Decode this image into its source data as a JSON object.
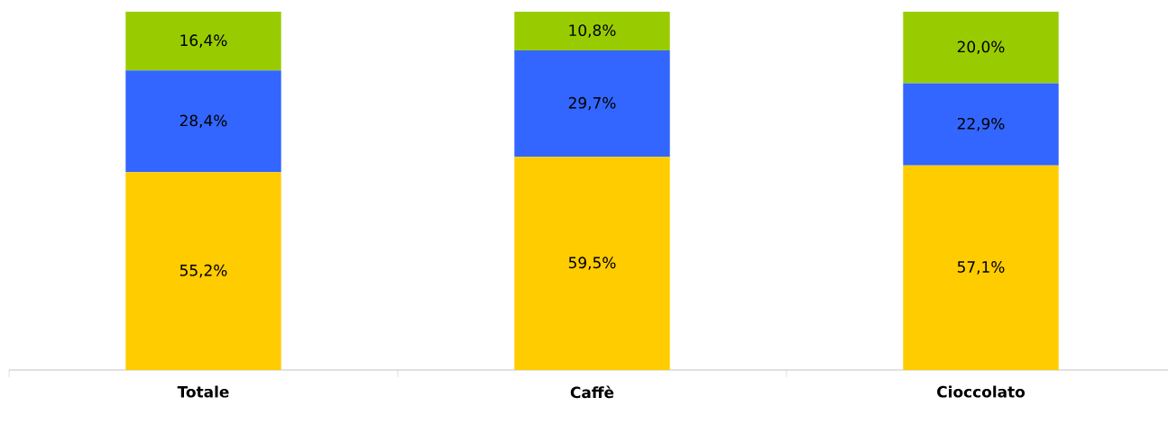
{
  "chart_data": {
    "type": "bar",
    "stacked": true,
    "categories": [
      "Totale",
      "Caffè",
      "Cioccolato"
    ],
    "series": [
      {
        "color": "#ffcc00",
        "values": [
          55.2,
          59.5,
          57.1
        ],
        "value_labels": [
          "55,2%",
          "59,5%",
          "57,1%"
        ]
      },
      {
        "color": "#3366ff",
        "values": [
          28.4,
          29.7,
          22.9
        ],
        "value_labels": [
          "28,4%",
          "29,7%",
          "22,9%"
        ]
      },
      {
        "color": "#99cc00",
        "values": [
          16.4,
          10.8,
          20.0
        ],
        "value_labels": [
          "16,4%",
          "10,8%",
          "20,0%"
        ]
      }
    ]
  }
}
